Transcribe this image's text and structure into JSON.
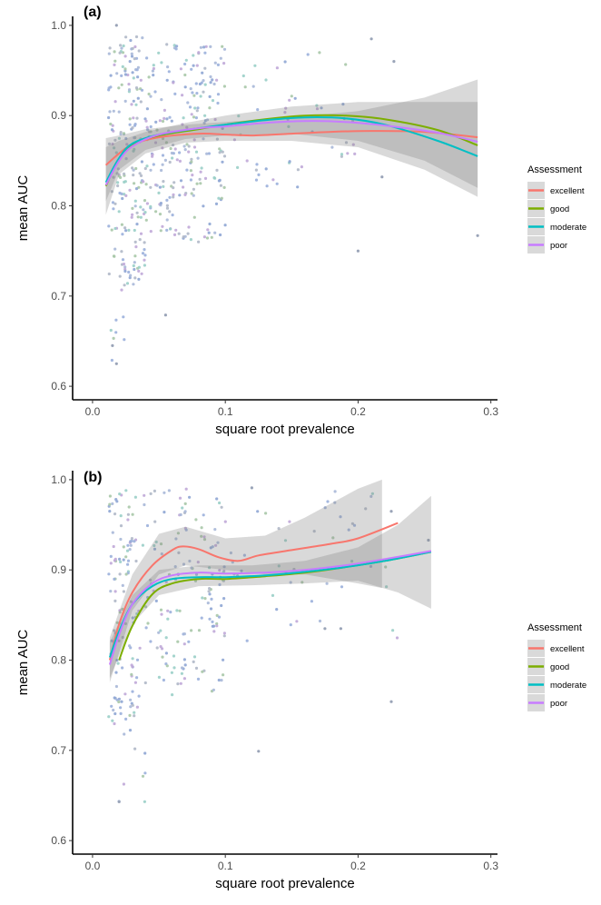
{
  "chart_data": [
    {
      "type": "scatter",
      "panel_label": "(a)",
      "xlabel": "square root prevalence",
      "ylabel": "mean AUC",
      "xlim": [
        -0.015,
        0.305
      ],
      "ylim": [
        0.585,
        1.01
      ],
      "x_ticks": [
        0.0,
        0.1,
        0.2,
        0.3
      ],
      "x_tick_labels": [
        "0.0",
        "0.1",
        "0.2",
        "0.3"
      ],
      "y_ticks": [
        0.6,
        0.7,
        0.8,
        0.9,
        1.0
      ],
      "y_tick_labels": [
        "0.6",
        "0.7",
        "0.8",
        "0.9",
        "1.0"
      ],
      "grid": false,
      "legend": {
        "title": "Assessment",
        "placement": "right"
      },
      "series": [
        {
          "name": "excellent",
          "color": "#F8766D",
          "x": [
            0.01,
            0.02,
            0.03,
            0.05,
            0.08,
            0.1,
            0.12,
            0.15,
            0.18,
            0.21,
            0.25,
            0.29
          ],
          "y": [
            0.845,
            0.858,
            0.868,
            0.876,
            0.88,
            0.879,
            0.878,
            0.88,
            0.882,
            0.883,
            0.882,
            0.876
          ]
        },
        {
          "name": "good",
          "color": "#7CAE00",
          "x": [
            0.01,
            0.02,
            0.03,
            0.05,
            0.08,
            0.1,
            0.13,
            0.16,
            0.19,
            0.22,
            0.26,
            0.29
          ],
          "y": [
            0.822,
            0.852,
            0.868,
            0.878,
            0.885,
            0.89,
            0.896,
            0.9,
            0.9,
            0.896,
            0.884,
            0.867
          ]
        },
        {
          "name": "moderate",
          "color": "#00BFC4",
          "x": [
            0.01,
            0.02,
            0.03,
            0.05,
            0.08,
            0.1,
            0.13,
            0.16,
            0.19,
            0.22,
            0.26,
            0.29
          ],
          "y": [
            0.826,
            0.853,
            0.869,
            0.879,
            0.886,
            0.89,
            0.895,
            0.898,
            0.897,
            0.89,
            0.872,
            0.855
          ]
        },
        {
          "name": "poor",
          "color": "#C77CFF",
          "x": [
            0.01,
            0.02,
            0.03,
            0.05,
            0.08,
            0.1,
            0.13,
            0.16,
            0.19,
            0.22,
            0.26,
            0.29
          ],
          "y": [
            0.823,
            0.85,
            0.866,
            0.879,
            0.886,
            0.888,
            0.892,
            0.894,
            0.893,
            0.889,
            0.881,
            0.871
          ]
        }
      ],
      "bands": [
        {
          "x": [
            0.01,
            0.02,
            0.04,
            0.07,
            0.1,
            0.15,
            0.2,
            0.25,
            0.29
          ],
          "lower": [
            0.79,
            0.835,
            0.858,
            0.87,
            0.872,
            0.872,
            0.865,
            0.84,
            0.81
          ],
          "upper": [
            0.875,
            0.878,
            0.885,
            0.89,
            0.893,
            0.898,
            0.905,
            0.92,
            0.94
          ]
        },
        {
          "x": [
            0.01,
            0.02,
            0.04,
            0.07,
            0.1,
            0.15,
            0.2,
            0.25,
            0.29
          ],
          "lower": [
            0.805,
            0.84,
            0.862,
            0.874,
            0.878,
            0.88,
            0.872,
            0.85,
            0.82
          ],
          "upper": [
            0.865,
            0.872,
            0.882,
            0.892,
            0.9,
            0.91,
            0.915,
            0.915,
            0.915
          ]
        }
      ],
      "point_clusters": [
        {
          "x_range": [
            0.012,
            0.04
          ],
          "y_range": [
            0.72,
            0.99
          ],
          "count": 190
        },
        {
          "x_range": [
            0.04,
            0.1
          ],
          "y_range": [
            0.76,
            0.98
          ],
          "count": 240
        },
        {
          "x_range": [
            0.1,
            0.2
          ],
          "y_range": [
            0.82,
            0.97
          ],
          "count": 50
        },
        {
          "x_range": [
            0.012,
            0.035
          ],
          "y_range": [
            0.62,
            0.72
          ],
          "count": 12
        }
      ],
      "outlier_points": [
        {
          "x": 0.018,
          "y": 1.0
        },
        {
          "x": 0.21,
          "y": 0.985
        },
        {
          "x": 0.2,
          "y": 0.75
        },
        {
          "x": 0.29,
          "y": 0.767
        },
        {
          "x": 0.218,
          "y": 0.832
        },
        {
          "x": 0.227,
          "y": 0.96
        },
        {
          "x": 0.055,
          "y": 0.679
        },
        {
          "x": 0.018,
          "y": 0.625
        },
        {
          "x": 0.015,
          "y": 0.645
        }
      ]
    },
    {
      "type": "scatter",
      "panel_label": "(b)",
      "xlabel": "square root prevalence",
      "ylabel": "mean AUC",
      "xlim": [
        -0.015,
        0.305
      ],
      "ylim": [
        0.585,
        1.01
      ],
      "x_ticks": [
        0.0,
        0.1,
        0.2,
        0.3
      ],
      "x_tick_labels": [
        "0.0",
        "0.1",
        "0.2",
        "0.3"
      ],
      "y_ticks": [
        0.6,
        0.7,
        0.8,
        0.9,
        1.0
      ],
      "y_tick_labels": [
        "0.6",
        "0.7",
        "0.8",
        "0.9",
        "1.0"
      ],
      "grid": false,
      "legend": {
        "title": "Assessment",
        "placement": "right"
      },
      "series": [
        {
          "name": "excellent",
          "color": "#F8766D",
          "x": [
            0.013,
            0.02,
            0.03,
            0.045,
            0.06,
            0.068,
            0.08,
            0.095,
            0.11,
            0.125,
            0.15,
            0.18,
            0.2,
            0.23
          ],
          "y": [
            0.8,
            0.84,
            0.875,
            0.905,
            0.922,
            0.926,
            0.923,
            0.914,
            0.91,
            0.916,
            0.922,
            0.929,
            0.935,
            0.952
          ]
        },
        {
          "name": "good",
          "color": "#7CAE00",
          "x": [
            0.02,
            0.03,
            0.045,
            0.06,
            0.08,
            0.1,
            0.13,
            0.16,
            0.19,
            0.22,
            0.255
          ],
          "y": [
            0.8,
            0.838,
            0.873,
            0.885,
            0.89,
            0.89,
            0.893,
            0.897,
            0.903,
            0.91,
            0.92
          ]
        },
        {
          "name": "moderate",
          "color": "#00BFC4",
          "x": [
            0.013,
            0.02,
            0.03,
            0.045,
            0.06,
            0.08,
            0.1,
            0.13,
            0.16,
            0.19,
            0.22,
            0.255
          ],
          "y": [
            0.803,
            0.832,
            0.862,
            0.882,
            0.89,
            0.892,
            0.892,
            0.894,
            0.898,
            0.903,
            0.91,
            0.92
          ]
        },
        {
          "name": "poor",
          "color": "#C77CFF",
          "x": [
            0.013,
            0.02,
            0.03,
            0.045,
            0.06,
            0.08,
            0.1,
            0.13,
            0.16,
            0.19,
            0.22,
            0.255
          ],
          "y": [
            0.795,
            0.828,
            0.862,
            0.885,
            0.894,
            0.897,
            0.896,
            0.897,
            0.9,
            0.905,
            0.912,
            0.921
          ]
        }
      ],
      "bands": [
        {
          "x": [
            0.013,
            0.03,
            0.05,
            0.07,
            0.1,
            0.13,
            0.16,
            0.2,
            0.218
          ],
          "lower": [
            0.775,
            0.855,
            0.895,
            0.905,
            0.9,
            0.895,
            0.895,
            0.885,
            0.88
          ],
          "upper": [
            0.825,
            0.895,
            0.94,
            0.948,
            0.935,
            0.938,
            0.958,
            0.99,
            1.0
          ]
        },
        {
          "x": [
            0.013,
            0.03,
            0.05,
            0.08,
            0.12,
            0.16,
            0.2,
            0.23,
            0.255
          ],
          "lower": [
            0.78,
            0.84,
            0.872,
            0.882,
            0.883,
            0.885,
            0.888,
            0.875,
            0.857
          ],
          "upper": [
            0.82,
            0.872,
            0.9,
            0.905,
            0.905,
            0.91,
            0.925,
            0.95,
            0.982
          ]
        }
      ],
      "point_clusters": [
        {
          "x_range": [
            0.012,
            0.035
          ],
          "y_range": [
            0.72,
            0.99
          ],
          "count": 120
        },
        {
          "x_range": [
            0.035,
            0.1
          ],
          "y_range": [
            0.76,
            0.99
          ],
          "count": 150
        },
        {
          "x_range": [
            0.1,
            0.23
          ],
          "y_range": [
            0.82,
            0.99
          ],
          "count": 45
        },
        {
          "x_range": [
            0.015,
            0.04
          ],
          "y_range": [
            0.64,
            0.72
          ],
          "count": 8
        }
      ],
      "outlier_points": [
        {
          "x": 0.02,
          "y": 0.643
        },
        {
          "x": 0.125,
          "y": 0.699
        },
        {
          "x": 0.225,
          "y": 0.754
        },
        {
          "x": 0.175,
          "y": 0.835
        },
        {
          "x": 0.187,
          "y": 0.835
        },
        {
          "x": 0.225,
          "y": 0.965
        },
        {
          "x": 0.253,
          "y": 0.933
        },
        {
          "x": 0.12,
          "y": 0.991
        }
      ]
    }
  ]
}
